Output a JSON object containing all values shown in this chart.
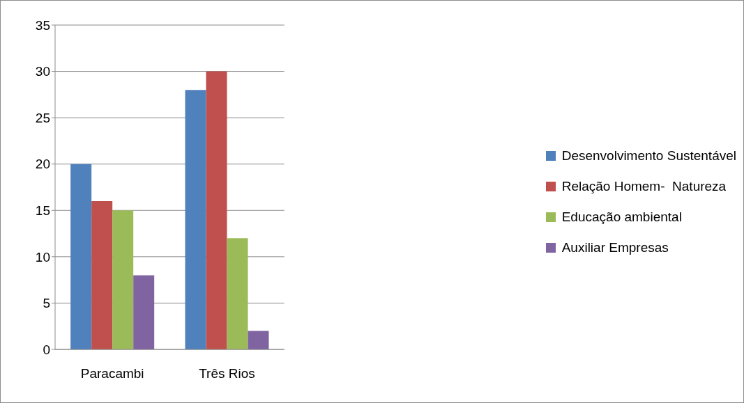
{
  "chart_data": {
    "type": "bar",
    "categories": [
      "Paracambi",
      "Três Rios"
    ],
    "series": [
      {
        "name": "Desenvolvimento Sustentável",
        "color": "#4f81bd",
        "values": [
          20,
          28
        ]
      },
      {
        "name": "Relação Homem-  Natureza",
        "color": "#c0504d",
        "values": [
          16,
          30
        ]
      },
      {
        "name": "Educação ambiental",
        "color": "#9bbb59",
        "values": [
          15,
          12
        ]
      },
      {
        "name": "Auxiliar Empresas",
        "color": "#8064a2",
        "values": [
          8,
          2
        ]
      }
    ],
    "ylim": [
      0,
      35
    ],
    "yticks": [
      0,
      5,
      10,
      15,
      20,
      25,
      30,
      35
    ],
    "grid": "y",
    "legend": "right"
  }
}
